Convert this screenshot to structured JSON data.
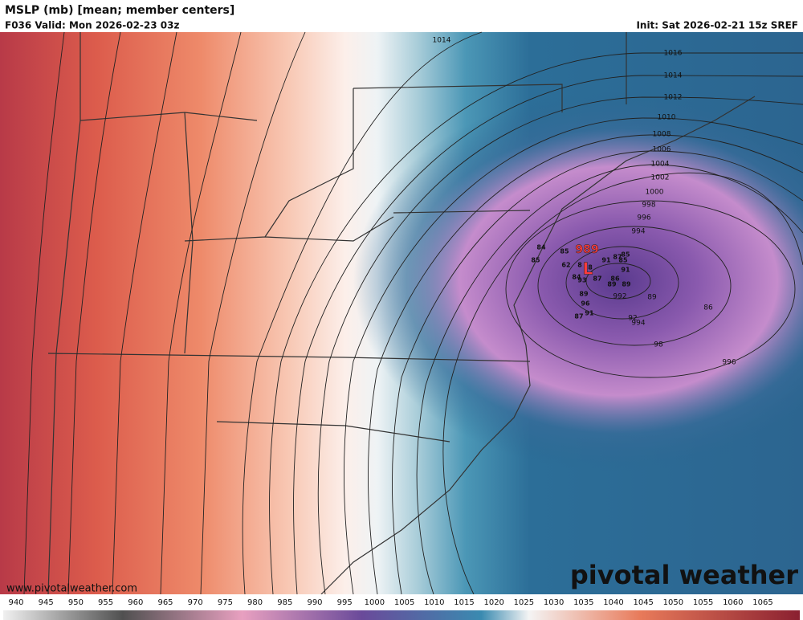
{
  "header": {
    "title": "MSLP (mb) [mean; member centers]",
    "valid": "F036 Valid: Mon 2026-02-23 03z",
    "init": "Init: Sat 2026-02-21 15z SREF"
  },
  "map": {
    "low": {
      "pressure": "989",
      "symbol": "L"
    },
    "isobar_labels": [
      1014,
      1016,
      1014,
      1012,
      1010,
      1008,
      1006,
      1004,
      1002,
      1000,
      998,
      996,
      994,
      992,
      994,
      98,
      996,
      86,
      89,
      92
    ],
    "member_centers": [
      84,
      85,
      85,
      62,
      8,
      8,
      91,
      87,
      85,
      85,
      91,
      84,
      93,
      87,
      86,
      89,
      89,
      89,
      96,
      91,
      87
    ]
  },
  "footer": {
    "url": "www.pivotalweather.com",
    "logo": "pivotal weather"
  },
  "colorbar": {
    "ticks": [
      940,
      945,
      950,
      955,
      960,
      965,
      970,
      975,
      980,
      985,
      990,
      995,
      1000,
      1005,
      1010,
      1015,
      1020,
      1025,
      1030,
      1035,
      1040,
      1045,
      1050,
      1055,
      1060,
      1065
    ]
  }
}
